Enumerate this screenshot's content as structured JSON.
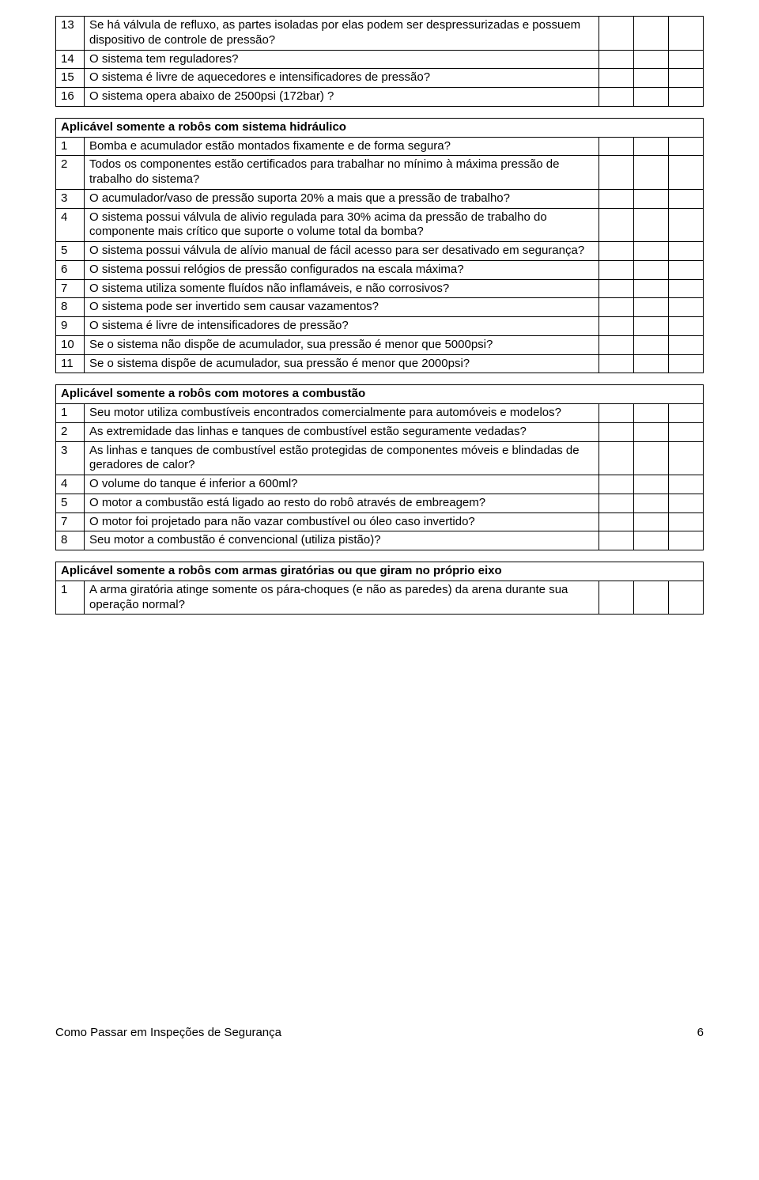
{
  "table_top": {
    "rows": [
      {
        "num": "13",
        "text": "Se há válvula de refluxo, as partes isoladas por elas podem ser despressurizadas e possuem dispositivo de controle de pressão?"
      },
      {
        "num": "14",
        "text": "O sistema tem reguladores?"
      },
      {
        "num": "15",
        "text": "O sistema é livre de aquecedores e intensificadores de pressão?"
      },
      {
        "num": "16",
        "text": "O sistema opera abaixo de 2500psi (172bar) ?"
      }
    ]
  },
  "table_hyd": {
    "header": "Aplicável somente a robôs com sistema hidráulico",
    "rows": [
      {
        "num": "1",
        "text": "Bomba e acumulador estão montados fixamente e de forma segura?"
      },
      {
        "num": "2",
        "text": "Todos os componentes estão certificados para trabalhar no mínimo à máxima pressão de trabalho do sistema?"
      },
      {
        "num": "3",
        "text": "O acumulador/vaso de pressão suporta 20% a mais que a pressão de trabalho?"
      },
      {
        "num": "4",
        "text": "O sistema possui válvula de alivio regulada para 30% acima da pressão de trabalho do componente mais crítico que suporte o volume total da bomba?"
      },
      {
        "num": "5",
        "text": "O sistema possui válvula de alívio manual de fácil acesso para ser desativado em segurança?"
      },
      {
        "num": "6",
        "text": "O sistema possui relógios de pressão configurados na escala máxima?"
      },
      {
        "num": "7",
        "text": "O sistema utiliza somente fluídos não inflamáveis, e não corrosivos?"
      },
      {
        "num": "8",
        "text": "O sistema pode ser invertido sem causar vazamentos?"
      },
      {
        "num": "9",
        "text": "O sistema é livre de intensificadores de pressão?"
      },
      {
        "num": "10",
        "text": "Se o sistema não dispõe de acumulador, sua pressão é menor que 5000psi?"
      },
      {
        "num": "11",
        "text": "Se o sistema dispõe de acumulador, sua pressão é menor que 2000psi?"
      }
    ]
  },
  "table_comb": {
    "header": "Aplicável somente a robôs com motores a combustão",
    "rows": [
      {
        "num": "1",
        "text": "Seu motor utiliza combustíveis encontrados comercialmente para automóveis e modelos?"
      },
      {
        "num": "2",
        "text": "As extremidade das linhas e tanques de combustível estão seguramente vedadas?"
      },
      {
        "num": "3",
        "text": "As linhas e tanques de combustível estão protegidas de componentes móveis e blindadas de geradores de calor?"
      },
      {
        "num": "4",
        "text": "O volume do tanque é inferior a 600ml?"
      },
      {
        "num": "5",
        "text": "O motor a combustão está ligado ao resto do robô através de embreagem?"
      },
      {
        "num": "7",
        "text": "O motor foi projetado para não vazar combustível ou óleo caso invertido?"
      },
      {
        "num": "8",
        "text": "Seu motor a combustão é convencional (utiliza pistão)?"
      }
    ]
  },
  "table_spin": {
    "header": "Aplicável somente a robôs com armas giratórias ou que giram no próprio eixo",
    "rows": [
      {
        "num": "1",
        "text": "A arma giratória atinge somente os pára-choques (e não as paredes) da arena durante sua operação normal?"
      }
    ]
  },
  "footer": {
    "title": "Como Passar em Inspeções de Segurança",
    "page": "6"
  }
}
